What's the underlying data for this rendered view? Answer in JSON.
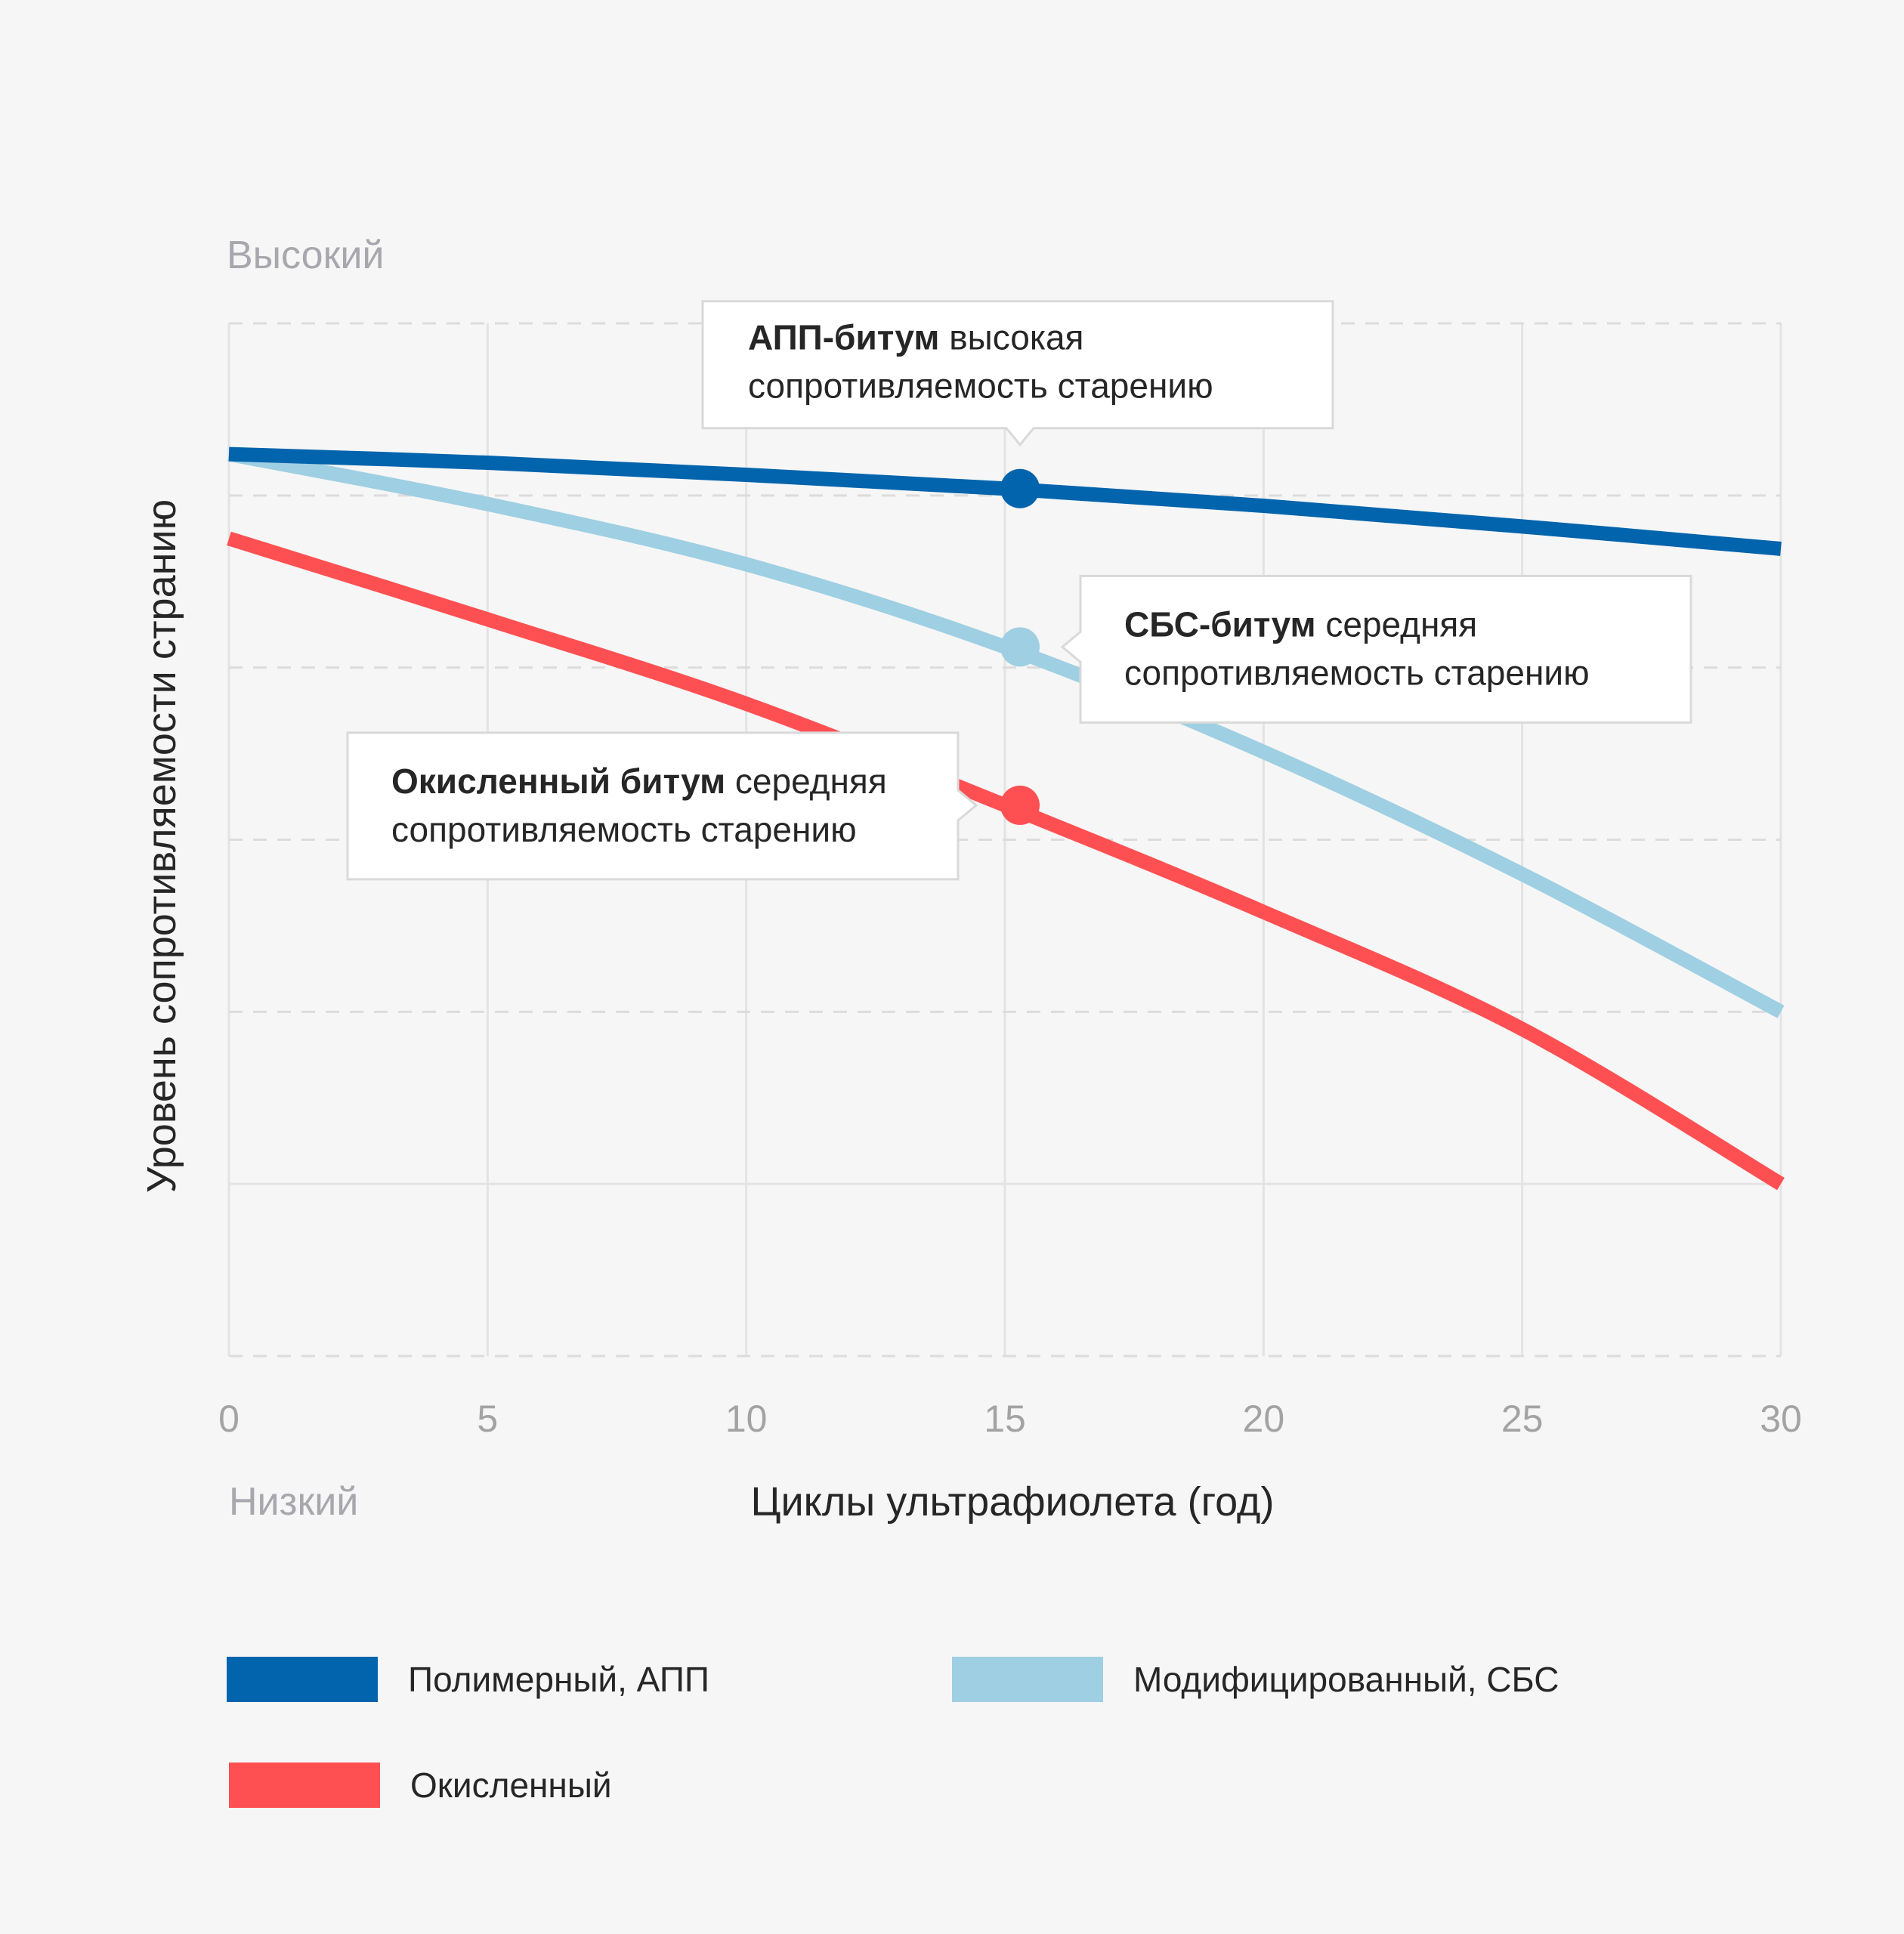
{
  "chart_data": {
    "type": "line",
    "xlabel": "Циклы ультрафиолета (год)",
    "ylabel": "Уровень сопротивляемости странию",
    "y_top_label": "Высокий",
    "y_bottom_label": "Низкий",
    "xlim": [
      0,
      30
    ],
    "ylim": [
      0,
      6
    ],
    "x_ticks": [
      "0",
      "5",
      "10",
      "15",
      "20",
      "25",
      "30"
    ],
    "grid": true,
    "legend_position": "bottom",
    "series": [
      {
        "name": "Полимерный, АПП",
        "color": "#0264ad",
        "x": [
          0,
          5,
          10,
          15,
          20,
          25,
          30
        ],
        "y": [
          5.24,
          5.19,
          5.12,
          5.04,
          4.94,
          4.82,
          4.69
        ]
      },
      {
        "name": "Модифицированный, СБС",
        "color": "#9fcfe2",
        "x": [
          0,
          5,
          10,
          15,
          20,
          25,
          30
        ],
        "y": [
          5.24,
          4.95,
          4.6,
          4.12,
          3.51,
          2.8,
          2.0
        ]
      },
      {
        "name": "Окисленный",
        "color": "#fe5052",
        "x": [
          0,
          5,
          10,
          15,
          20,
          25,
          30
        ],
        "y": [
          4.75,
          4.28,
          3.79,
          3.2,
          2.58,
          1.9,
          1.0
        ]
      }
    ],
    "markers": [
      {
        "series": 0,
        "x": 15
      },
      {
        "series": 1,
        "x": 15
      },
      {
        "series": 2,
        "x": 15
      }
    ],
    "annotations": [
      {
        "series": 0,
        "bold": "АПП-битум",
        "rest": " высокая",
        "line2": "сопротивляемость старению"
      },
      {
        "series": 1,
        "bold": "СБС-битум",
        "rest": " середняя",
        "line2": "сопротивляемость старению"
      },
      {
        "series": 2,
        "bold": "Окисленный битум",
        "rest": " середняя",
        "line2": "сопротивляемость старению"
      }
    ]
  }
}
